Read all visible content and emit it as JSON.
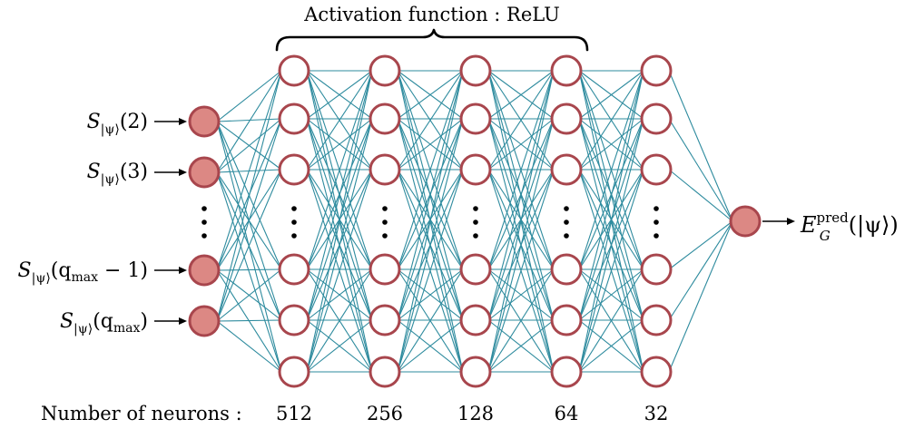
{
  "colors": {
    "edge": "#2e8b9e",
    "node_stroke": "#a8464d",
    "input_fill": "#dc8884",
    "hidden_fill": "#ffffff",
    "text": "#000000"
  },
  "header": {
    "activation_label": "Activation function : ReLU"
  },
  "inputs": [
    {
      "sub": "|ψ⟩",
      "arg": "(2)"
    },
    {
      "sub": "|ψ⟩",
      "arg": "(3)"
    },
    {
      "sub": "|ψ⟩",
      "arg": "(q",
      "arg_sub": "max",
      "arg_tail": " − 1)"
    },
    {
      "sub": "|ψ⟩",
      "arg": "(q",
      "arg_sub": "max",
      "arg_tail": ")"
    }
  ],
  "input_symbol": "S",
  "output": {
    "symbol": "E",
    "sub": "G",
    "sup": "pred",
    "arg": "(|ψ⟩)"
  },
  "neurons": {
    "label": "Number of neurons :",
    "counts": [
      "512",
      "256",
      "128",
      "64",
      "32"
    ]
  }
}
